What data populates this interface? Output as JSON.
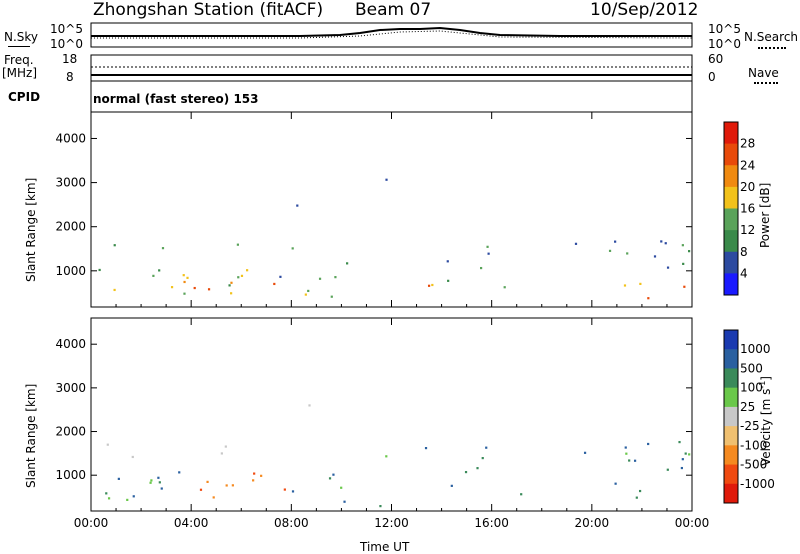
{
  "header": {
    "station": "Zhongshan Station (fitACF)",
    "beam": "Beam 07",
    "date": "10/Sep/2012"
  },
  "noise_panel": {
    "left_label": "N.Sky",
    "right_label": "N.Search",
    "left_ticks": [
      "10^5",
      "10^0"
    ],
    "right_ticks": [
      "10^5",
      "10^0"
    ]
  },
  "freq_panel": {
    "left_label_top": "Freq.",
    "left_label_unit": "[MHz]",
    "right_label": "Nave",
    "left_ticks": [
      "18",
      "8"
    ],
    "right_ticks": [
      "60",
      "0"
    ]
  },
  "cpid": {
    "label": "CPID",
    "text": "normal (fast stereo) 153"
  },
  "colors": {
    "power_scale": [
      "#1a1aff",
      "#2c4aa0",
      "#3a8a4a",
      "#5aa35a",
      "#f2c21b",
      "#f08a10",
      "#e84a0a",
      "#e01a0a"
    ],
    "velocity_scale": [
      "#e01a0a",
      "#f04a10",
      "#f58a20",
      "#f0c070",
      "#c8c8c8",
      "#6ac84a",
      "#3a8a5a",
      "#2a60a0",
      "#1a3ab0"
    ]
  },
  "chart_data": [
    {
      "type": "heatmap",
      "name": "power",
      "ylabel": "Slant Range [km]",
      "xlabel": "",
      "x_ticks": [
        "00:00",
        "04:00",
        "08:00",
        "12:00",
        "16:00",
        "20:00",
        "00:00"
      ],
      "y_ticks": [
        "1000",
        "2000",
        "3000",
        "4000"
      ],
      "ylim": [
        180,
        4600
      ],
      "xlim_hours": [
        0,
        24
      ],
      "colorbar_label": "Power [dB]",
      "colorbar_ticks": [
        "4",
        "8",
        "12",
        "16",
        "20",
        "24",
        "28"
      ],
      "colorbar_range": [
        0,
        30
      ]
    },
    {
      "type": "heatmap",
      "name": "velocity",
      "ylabel": "Slant Range [km]",
      "xlabel": "Time UT",
      "x_ticks": [
        "00:00",
        "04:00",
        "08:00",
        "12:00",
        "16:00",
        "20:00",
        "00:00"
      ],
      "y_ticks": [
        "1000",
        "2000",
        "3000",
        "4000"
      ],
      "ylim": [
        180,
        4600
      ],
      "xlim_hours": [
        0,
        24
      ],
      "colorbar_label": "Velocity [m s",
      "colorbar_label_exp": "-1",
      "colorbar_label_close": "]",
      "colorbar_ticks": [
        "1000",
        "500",
        "100",
        "25",
        "-25",
        "-100",
        "-500",
        "-1000"
      ]
    }
  ]
}
